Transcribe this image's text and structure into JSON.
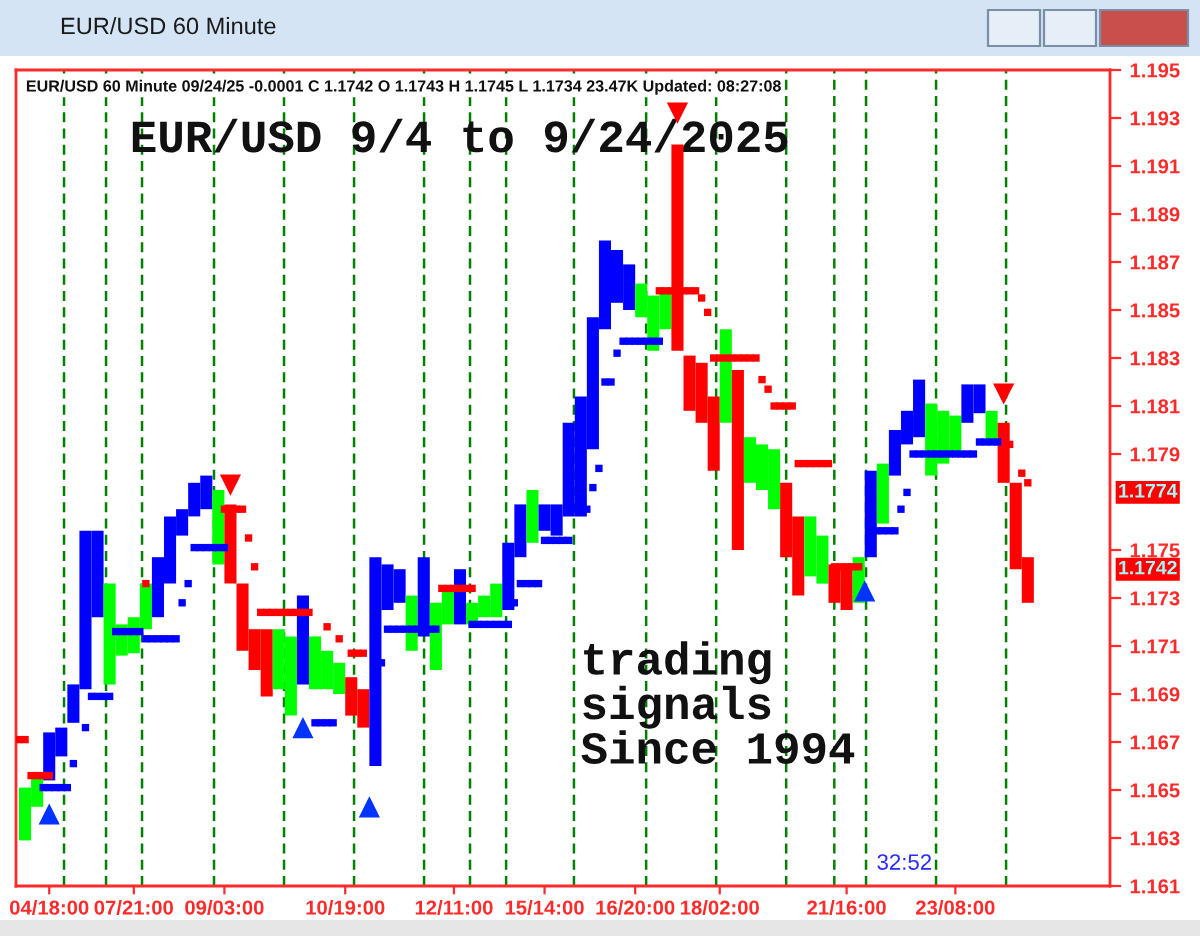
{
  "chart_data": {
    "type": "bar",
    "title": "EUR/USD 60 Minute",
    "subtitle": "EUR/USD 60 Minute 09/24/25 -0.0001 C 1.1742 O 1.1743 H 1.1745 L 1.1734 23.47K Updated: 08:27:08",
    "annotations": [
      "EUR/USD 9/4 to 9/24/2025",
      "trading\nsignals\nSince 1994",
      "32:52",
      "1.1774",
      "1.1742"
    ],
    "categories": [
      null,
      null,
      null,
      null,
      null,
      "04/18:00",
      null,
      null,
      null,
      null,
      null,
      null,
      null,
      null,
      null,
      null,
      null,
      null,
      null,
      "07/21:00",
      null,
      null,
      null,
      null,
      null,
      null,
      null,
      null,
      null,
      null,
      null,
      null,
      null,
      null,
      "09/03:00",
      null,
      null,
      null,
      null,
      null,
      null,
      null,
      null,
      null,
      null,
      null,
      null,
      null,
      null,
      null,
      null,
      null,
      null,
      null,
      "10/19:00",
      null,
      null,
      null,
      null,
      null,
      null,
      null,
      null,
      null,
      null,
      null,
      null,
      null,
      null,
      null,
      null,
      null,
      "12/11:00",
      null,
      null,
      null,
      null,
      null,
      null,
      null,
      null,
      null,
      null,
      null,
      null,
      null,
      null,
      "15/14:00",
      null,
      null,
      null,
      null,
      null,
      null,
      null,
      null,
      null,
      null,
      null,
      null,
      null,
      null,
      "16/20:00",
      null,
      null,
      null,
      null,
      null,
      null,
      null,
      null,
      null,
      null,
      null,
      null,
      null,
      "18/02:00",
      null,
      null,
      null,
      null,
      null,
      null,
      null,
      null,
      null,
      null,
      null,
      null,
      null,
      null,
      null,
      null,
      null,
      null,
      null,
      null,
      "21/16:00",
      null,
      null,
      null,
      null,
      null,
      null,
      null,
      null,
      null,
      null,
      null,
      null,
      null,
      null,
      null,
      null,
      null,
      "23/08:00",
      null,
      null,
      null,
      null,
      null,
      null,
      null,
      null,
      null,
      null,
      null,
      null
    ],
    "ylim": [
      1.161,
      1.195
    ],
    "yticks": [
      1.161,
      1.163,
      1.165,
      1.167,
      1.169,
      1.171,
      1.173,
      1.175,
      1.179,
      1.181,
      1.183,
      1.185,
      1.187,
      1.189,
      1.191,
      1.193,
      1.195
    ],
    "series": [
      {
        "base": [
          null,
          1.1629,
          null,
          1.1643,
          null,
          1.1654,
          null,
          1.1664,
          null,
          1.1678,
          null,
          1.1692,
          null,
          1.1722,
          null,
          1.1694,
          null,
          1.1706,
          null,
          1.1707,
          null,
          1.1717,
          null,
          1.1722,
          null,
          1.1736,
          null,
          1.1756,
          null,
          1.1764,
          null,
          1.1767,
          null,
          1.1744,
          null,
          1.1736,
          null,
          1.1708,
          null,
          1.17,
          null,
          1.1689,
          null,
          1.1692,
          null,
          1.1681,
          null,
          1.1694,
          null,
          1.1692,
          null,
          1.1692,
          null,
          1.169,
          null,
          1.1681,
          null,
          1.1676,
          null,
          1.166,
          null,
          1.1725,
          null,
          1.1728,
          null,
          1.1708,
          null,
          1.1714,
          null,
          1.17,
          null,
          1.1719,
          null,
          1.1719,
          null,
          1.1719,
          null,
          1.1722,
          null,
          1.1722,
          null,
          1.1725,
          null,
          1.1747,
          null,
          1.1753,
          null,
          1.1758,
          null,
          1.1756,
          null,
          1.1764,
          null,
          1.1764,
          null,
          1.1792,
          null,
          1.1842,
          null,
          1.1853,
          null,
          1.185,
          null,
          1.1847,
          null,
          1.1833,
          null,
          1.1842,
          null,
          1.1833,
          null,
          1.1808,
          null,
          1.1803,
          null,
          1.1783,
          null,
          1.1803,
          null,
          1.175,
          null,
          1.1778,
          null,
          1.1775,
          null,
          1.1767,
          null,
          1.1747,
          null,
          1.1731,
          null,
          1.1739,
          null,
          1.1736,
          null,
          1.1728,
          null,
          1.1725,
          null,
          1.1728,
          null,
          1.1747,
          null,
          1.1761,
          null,
          1.1781,
          null,
          1.1794,
          null,
          1.1797,
          null,
          1.1781,
          null,
          1.1786,
          null,
          1.1789,
          null,
          1.1803,
          null,
          1.1807,
          null,
          1.1794,
          null,
          1.1778,
          null,
          1.1742,
          null,
          1.1728
        ],
        "values": [
          null,
          0.0022,
          null,
          0.0012,
          null,
          0.002,
          null,
          0.0012,
          null,
          0.0016,
          null,
          0.0066,
          null,
          0.0036,
          null,
          0.0042,
          null,
          0.0013,
          null,
          0.0015,
          null,
          0.0019,
          null,
          0.0025,
          null,
          0.0028,
          null,
          0.0011,
          null,
          0.0014,
          null,
          0.0014,
          null,
          0.0031,
          null,
          0.0033,
          null,
          0.0028,
          null,
          0.0017,
          null,
          0.0028,
          null,
          0.0025,
          null,
          0.0033,
          null,
          0.0037,
          null,
          0.0022,
          null,
          0.0016,
          null,
          0.0013,
          null,
          0.0016,
          null,
          0.0016,
          null,
          0.0087,
          null,
          0.0019,
          null,
          0.0014,
          null,
          0.0023,
          null,
          0.0033,
          null,
          0.0028,
          null,
          0.0014,
          null,
          0.0023,
          null,
          0.0009,
          null,
          0.0009,
          null,
          0.0014,
          null,
          0.0028,
          null,
          0.0022,
          null,
          0.0022,
          null,
          0.0011,
          null,
          0.0013,
          null,
          0.0039,
          null,
          0.005,
          null,
          0.0055,
          null,
          0.0037,
          null,
          0.0022,
          null,
          0.0019,
          null,
          0.0014,
          null,
          0.0023,
          null,
          0.0016,
          null,
          0.0086,
          null,
          0.0023,
          null,
          0.0025,
          null,
          0.0031,
          null,
          0.0039,
          null,
          0.0075,
          null,
          0.0019,
          null,
          0.0019,
          null,
          0.0025,
          null,
          0.0031,
          null,
          0.0033,
          null,
          0.0025,
          null,
          0.002,
          null,
          0.0016,
          null,
          0.0017,
          null,
          0.0019,
          null,
          0.0036,
          null,
          0.0025,
          null,
          0.0019,
          null,
          0.0014,
          null,
          0.0024,
          null,
          0.003,
          null,
          0.0022,
          null,
          0.0017,
          null,
          0.0016,
          null,
          0.0012,
          null,
          0.0014,
          null,
          0.0025,
          null,
          0.0036,
          null,
          0.0019
        ],
        "colors": [
          null,
          "#00ff00",
          null,
          "#00ff00",
          null,
          "#0000ff",
          null,
          "#0000ff",
          null,
          "#0000ff",
          null,
          "#0000ff",
          null,
          "#0000ff",
          null,
          "#00ff00",
          null,
          "#00ff00",
          null,
          "#00ff00",
          null,
          "#00ff00",
          null,
          "#0000ff",
          null,
          "#0000ff",
          null,
          "#0000ff",
          null,
          "#0000ff",
          null,
          "#0000ff",
          null,
          "#00ff00",
          null,
          "#ff0000",
          null,
          "#ff0000",
          null,
          "#ff0000",
          null,
          "#ff0000",
          null,
          "#00ff00",
          null,
          "#00ff00",
          null,
          "#0000ff",
          null,
          "#00ff00",
          null,
          "#00ff00",
          null,
          "#00ff00",
          null,
          "#ff0000",
          null,
          "#ff0000",
          null,
          "#0000ff",
          null,
          "#0000ff",
          null,
          "#0000ff",
          null,
          "#00ff00",
          null,
          "#0000ff",
          null,
          "#00ff00",
          null,
          "#00ff00",
          null,
          "#0000ff",
          null,
          "#00ff00",
          null,
          "#00ff00",
          null,
          "#00ff00",
          null,
          "#0000ff",
          null,
          "#0000ff",
          null,
          "#00ff00",
          null,
          "#0000ff",
          null,
          "#0000ff",
          null,
          "#0000ff",
          null,
          "#0000ff",
          null,
          "#0000ff",
          null,
          "#0000ff",
          null,
          "#0000ff",
          null,
          "#0000ff",
          null,
          "#00ff00",
          null,
          "#00ff00",
          null,
          "#00ff00",
          null,
          "#ff0000",
          null,
          "#ff0000",
          null,
          "#ff0000",
          null,
          "#ff0000",
          null,
          "#00ff00",
          null,
          "#ff0000",
          null,
          "#00ff00",
          null,
          "#00ff00",
          null,
          "#00ff00",
          null,
          "#ff0000",
          null,
          "#ff0000",
          null,
          "#00ff00",
          null,
          "#00ff00",
          null,
          "#ff0000",
          null,
          "#ff0000",
          null,
          "#00ff00",
          null,
          "#0000ff",
          null,
          "#00ff00",
          null,
          "#0000ff",
          null,
          "#0000ff",
          null,
          "#0000ff",
          null,
          "#00ff00",
          null,
          "#00ff00",
          null,
          "#00ff00",
          null,
          "#0000ff",
          null,
          "#0000ff",
          null,
          "#00ff00",
          null,
          "#ff0000",
          null,
          "#ff0000",
          null,
          "#ff0000"
        ]
      },
      {
        "type": "scatter",
        "color": "#0000ff",
        "marker": "square",
        "values": [
          null,
          null,
          null,
          null,
          1.1651,
          1.1651,
          1.1651,
          1.1651,
          1.1651,
          1.1661,
          null,
          1.1676,
          1.1689,
          1.1689,
          1.1689,
          1.1689,
          1.1716,
          1.1716,
          1.1716,
          1.1716,
          1.1716,
          1.1713,
          1.1713,
          1.1713,
          1.1713,
          1.1713,
          1.1713,
          1.1728,
          1.1736,
          1.1751,
          1.1751,
          1.1751,
          1.1751,
          1.1751,
          1.1751,
          null,
          null,
          null,
          null,
          null,
          null,
          null,
          null,
          null,
          null,
          null,
          null,
          null,
          null,
          1.1678,
          1.1678,
          1.1678,
          1.1678,
          null,
          null,
          null,
          null,
          null,
          null,
          null,
          1.1703,
          1.1717,
          1.1717,
          1.1717,
          1.1717,
          1.1717,
          1.1717,
          null,
          1.1717,
          1.1717,
          null,
          null,
          null,
          null,
          null,
          1.1719,
          1.1719,
          1.1719,
          1.1719,
          1.1719,
          1.1719,
          1.1719,
          1.1728,
          1.1736,
          1.1736,
          1.1736,
          1.1736,
          1.1754,
          1.1754,
          1.1754,
          1.1754,
          1.1754,
          1.1767,
          null,
          1.1767,
          1.1776,
          1.1784,
          1.182,
          1.182,
          1.1832,
          1.1837,
          1.1837,
          1.1837,
          1.1837,
          1.1837,
          1.1837,
          1.1837,
          null,
          null,
          null,
          null,
          null,
          null,
          null,
          null,
          null,
          null,
          null,
          null,
          null,
          null,
          null,
          null,
          null,
          null,
          null,
          null,
          null,
          null,
          null,
          null,
          null,
          null,
          null,
          null,
          null,
          null,
          null,
          null,
          null,
          null,
          null,
          1.1758,
          1.1758,
          1.1758,
          1.1758,
          1.1767,
          1.1774,
          1.179,
          1.179,
          1.179,
          1.179,
          1.179,
          1.179,
          1.179,
          1.179,
          1.179,
          1.179,
          1.179,
          1.1795,
          1.1795,
          1.1795,
          1.1795,
          null,
          null,
          null,
          null,
          null
        ]
      },
      {
        "type": "scatter",
        "color": "#ff0000",
        "marker": "square",
        "values": [
          1.1671,
          1.1671,
          1.1656,
          1.1656,
          1.1656,
          1.1656,
          null,
          null,
          null,
          null,
          null,
          null,
          null,
          null,
          null,
          null,
          null,
          null,
          null,
          null,
          null,
          1.1736,
          null,
          null,
          null,
          null,
          null,
          null,
          null,
          null,
          null,
          null,
          null,
          null,
          1.1767,
          null,
          1.1767,
          1.1767,
          1.1755,
          1.1743,
          1.1724,
          1.1724,
          1.1724,
          1.1724,
          1.1724,
          1.1724,
          1.1724,
          1.1724,
          1.1724,
          null,
          null,
          1.1718,
          null,
          1.1713,
          null,
          1.1707,
          1.1707,
          1.1707,
          null,
          null,
          null,
          null,
          null,
          null,
          null,
          null,
          null,
          null,
          null,
          null,
          1.1734,
          1.1734,
          1.1734,
          1.1734,
          1.1734,
          1.1734,
          null,
          null,
          null,
          null,
          null,
          null,
          null,
          null,
          null,
          null,
          null,
          null,
          null,
          null,
          null,
          null,
          null,
          null,
          null,
          null,
          null,
          null,
          null,
          null,
          null,
          null,
          null,
          null,
          null,
          null,
          1.1858,
          1.1858,
          1.1858,
          null,
          1.1858,
          1.1858,
          1.1858,
          1.1855,
          1.1849,
          1.183,
          1.183,
          1.183,
          1.183,
          1.183,
          1.183,
          1.183,
          1.183,
          1.1821,
          1.1817,
          1.181,
          1.181,
          1.181,
          1.181,
          1.1786,
          1.1786,
          1.1786,
          1.1786,
          1.1786,
          1.1786,
          1.1743,
          1.1743,
          1.1743,
          1.1743,
          1.1743,
          null,
          null,
          null,
          null,
          null,
          null,
          null,
          null,
          null,
          null,
          null,
          null,
          null,
          null,
          null,
          null,
          null,
          null,
          null,
          null,
          null,
          null,
          null,
          null,
          1.1794,
          null,
          1.1782,
          1.1778
        ]
      },
      {
        "type": "scatter",
        "color": "#0033ff",
        "marker": "triangle",
        "values": [
          null,
          null,
          null,
          null,
          null,
          1.164,
          null,
          null,
          null,
          null,
          null,
          null,
          null,
          null,
          null,
          null,
          null,
          null,
          null,
          null,
          null,
          null,
          null,
          null,
          null,
          null,
          null,
          null,
          null,
          null,
          null,
          null,
          null,
          null,
          null,
          null,
          null,
          null,
          null,
          null,
          null,
          null,
          null,
          null,
          null,
          null,
          null,
          1.1676,
          null,
          null,
          null,
          null,
          null,
          null,
          null,
          null,
          null,
          null,
          1.1643,
          null,
          null,
          null,
          null,
          null,
          null,
          null,
          null,
          null,
          null,
          null,
          null,
          null,
          null,
          null,
          null,
          null,
          null,
          null,
          null,
          null,
          null,
          null,
          null,
          null,
          null,
          null,
          null,
          null,
          null,
          null,
          null,
          null,
          null,
          null,
          null,
          null,
          null,
          null,
          null,
          null,
          null,
          null,
          null,
          null,
          null,
          null,
          null,
          null,
          null,
          null,
          null,
          null,
          null,
          null,
          null,
          null,
          null,
          null,
          null,
          null,
          null,
          null,
          null,
          null,
          null,
          null,
          null,
          null,
          null,
          null,
          null,
          null,
          null,
          null,
          null,
          null,
          null,
          null,
          null,
          null,
          1.1733,
          null,
          null,
          null,
          null,
          null,
          null,
          null,
          null,
          null,
          null,
          null,
          null,
          null,
          null,
          null,
          null,
          null,
          null,
          null,
          null,
          null,
          null,
          null,
          null,
          null,
          null,
          null
        ]
      },
      {
        "type": "scatter",
        "color": "#ff0000",
        "marker": "triangle-down",
        "values": [
          null,
          null,
          null,
          null,
          null,
          null,
          null,
          null,
          null,
          null,
          null,
          null,
          null,
          null,
          null,
          null,
          null,
          null,
          null,
          null,
          null,
          null,
          null,
          null,
          null,
          null,
          null,
          null,
          null,
          null,
          null,
          null,
          null,
          null,
          null,
          1.1777,
          null,
          null,
          null,
          null,
          null,
          null,
          null,
          null,
          null,
          null,
          null,
          null,
          null,
          null,
          null,
          null,
          null,
          null,
          null,
          null,
          null,
          null,
          null,
          null,
          null,
          null,
          null,
          null,
          null,
          null,
          null,
          null,
          null,
          null,
          null,
          null,
          null,
          null,
          null,
          null,
          null,
          null,
          null,
          null,
          null,
          null,
          null,
          null,
          null,
          null,
          null,
          null,
          null,
          null,
          null,
          null,
          null,
          null,
          null,
          null,
          null,
          null,
          null,
          null,
          null,
          null,
          null,
          null,
          null,
          null,
          null,
          null,
          null,
          1.1932,
          null,
          null,
          null,
          null,
          null,
          null,
          null,
          null,
          null,
          null,
          null,
          null,
          null,
          null,
          null,
          null,
          null,
          null,
          null,
          null,
          null,
          null,
          null,
          null,
          null,
          null,
          null,
          null,
          null,
          null,
          null,
          null,
          null,
          null,
          null,
          null,
          null,
          null,
          null,
          null,
          null,
          null,
          null,
          null,
          null,
          null,
          null,
          null,
          null,
          null,
          null,
          null,
          null,
          1.1815,
          null,
          null,
          null,
          null
        ]
      }
    ]
  }
}
